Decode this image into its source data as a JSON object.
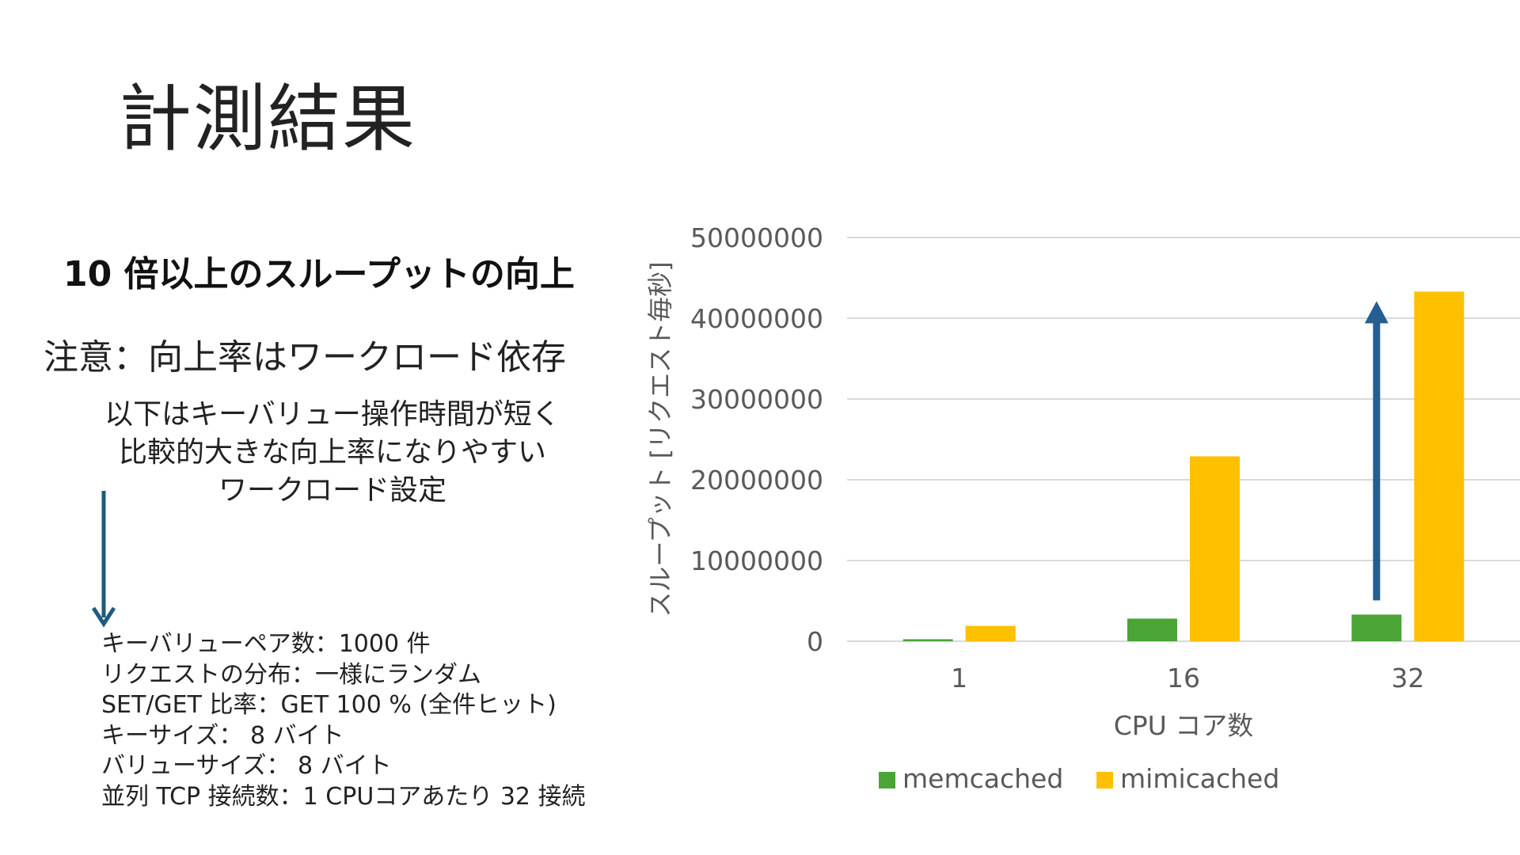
{
  "title": "計測結果",
  "headline": "10 倍以上のスループットの向上",
  "note": "注意：向上率はワークロード依存",
  "description_lines": [
    "以下はキーバリュー操作時間が短く",
    "比較的大きな向上率になりやすい",
    "ワークロード設定"
  ],
  "settings": [
    "キーバリューペア数：1000 件",
    "リクエストの分布：一様にランダム",
    "SET/GET 比率：GET 100 % (全件ヒット)",
    "キーサイズ： 8 バイト",
    "バリューサイズ： 8 バイト",
    "並列 TCP 接続数：1 CPUコアあたり 32 接続"
  ],
  "colors": {
    "memcached": "#4aa436",
    "mimicached": "#ffc000",
    "arrow": "#255e91",
    "down_arrow": "#1f5b7a"
  },
  "chart_data": {
    "type": "bar",
    "categories": [
      "1",
      "16",
      "32"
    ],
    "series": [
      {
        "name": "memcached",
        "values": [
          250000,
          2800000,
          3300000
        ]
      },
      {
        "name": "mimicached",
        "values": [
          1900000,
          22900000,
          43300000
        ]
      }
    ],
    "ylim": [
      0,
      50000000
    ],
    "yticks": [
      "50000000",
      "40000000",
      "30000000",
      "20000000",
      "10000000",
      "0"
    ],
    "ylabel": "スループット [リクエスト毎秒]",
    "xlabel": "CPU コア数",
    "legend_position": "bottom",
    "grid": true
  }
}
